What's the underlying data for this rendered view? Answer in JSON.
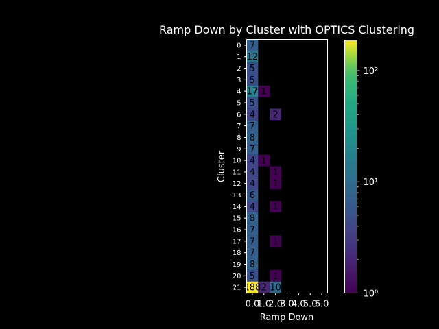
{
  "chart_data": {
    "type": "heatmap",
    "title": "Ramp Down by Cluster with OPTICS Clustering",
    "xlabel": "Ramp Down",
    "ylabel": "Cluster",
    "x_categories": [
      "0.0",
      "1.0",
      "2.0",
      "3.0",
      "4.0",
      "5.0",
      "6.0"
    ],
    "y_categories": [
      "0",
      "1",
      "2",
      "3",
      "4",
      "5",
      "6",
      "7",
      "8",
      "9",
      "10",
      "11",
      "12",
      "13",
      "14",
      "15",
      "16",
      "17",
      "18",
      "19",
      "20",
      "21"
    ],
    "values": [
      [
        7,
        null,
        null,
        null,
        null,
        null,
        null
      ],
      [
        12,
        null,
        null,
        null,
        null,
        null,
        null
      ],
      [
        5,
        null,
        null,
        null,
        null,
        null,
        null
      ],
      [
        5,
        null,
        null,
        null,
        null,
        null,
        null
      ],
      [
        17,
        1,
        null,
        null,
        null,
        null,
        null
      ],
      [
        5,
        null,
        null,
        null,
        null,
        null,
        null
      ],
      [
        4,
        null,
        2,
        null,
        null,
        null,
        null
      ],
      [
        7,
        null,
        null,
        null,
        null,
        null,
        null
      ],
      [
        8,
        null,
        null,
        null,
        null,
        null,
        null
      ],
      [
        7,
        null,
        null,
        null,
        null,
        null,
        null
      ],
      [
        4,
        1,
        null,
        null,
        null,
        null,
        null
      ],
      [
        4,
        null,
        1,
        null,
        null,
        null,
        null
      ],
      [
        4,
        null,
        1,
        null,
        null,
        null,
        null
      ],
      [
        6,
        null,
        null,
        null,
        null,
        null,
        null
      ],
      [
        4,
        null,
        1,
        null,
        null,
        null,
        null
      ],
      [
        8,
        null,
        null,
        null,
        null,
        null,
        null
      ],
      [
        7,
        null,
        null,
        null,
        null,
        null,
        null
      ],
      [
        7,
        null,
        1,
        null,
        null,
        null,
        null
      ],
      [
        7,
        null,
        null,
        null,
        null,
        null,
        null
      ],
      [
        8,
        null,
        null,
        null,
        null,
        null,
        null
      ],
      [
        5,
        null,
        1,
        null,
        null,
        null,
        null
      ],
      [
        188,
        2,
        10,
        null,
        null,
        null,
        null
      ]
    ],
    "colorbar": {
      "scale": "log",
      "range": [
        1,
        188
      ],
      "colormap": "viridis",
      "ticks": [
        {
          "value": 1,
          "label": "10⁰"
        },
        {
          "value": 10,
          "label": "10¹"
        },
        {
          "value": 100,
          "label": "10²"
        }
      ]
    },
    "grid": false,
    "background": "#000000",
    "text_color": "#ffffff"
  }
}
